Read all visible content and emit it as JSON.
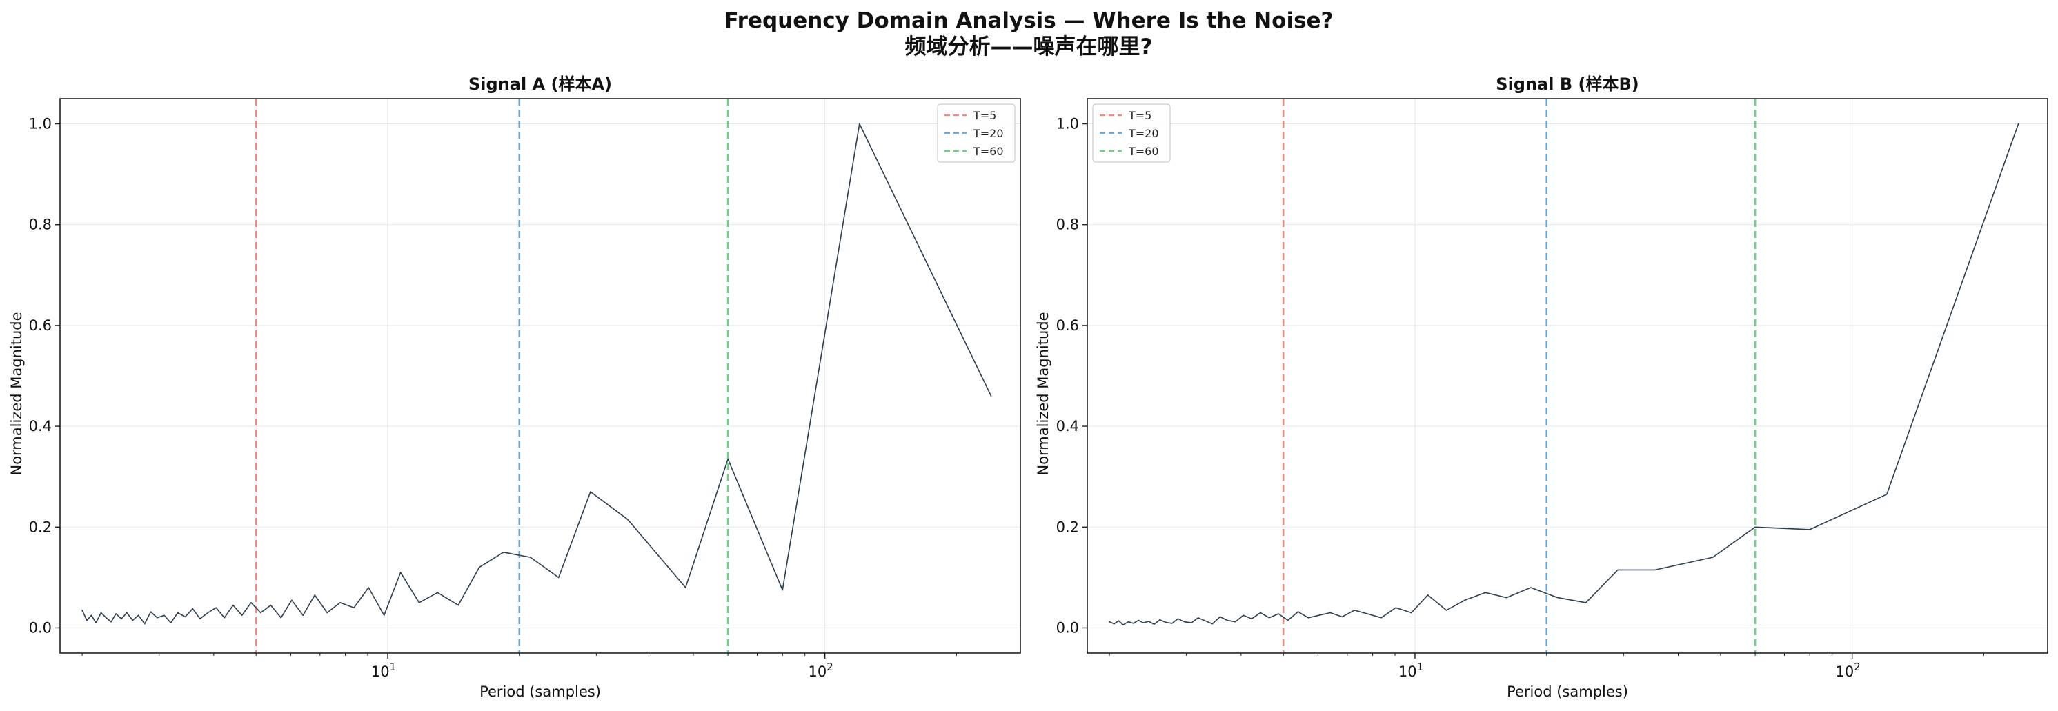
{
  "figure": {
    "title_line1": "Frequency Domain Analysis — Where Is the Noise?",
    "title_line2": "频域分析——噪声在哪里?"
  },
  "chart_data": [
    {
      "type": "line",
      "title": "Signal A (样本A)",
      "xlabel": "Period (samples)",
      "ylabel": "Normalized Magnitude",
      "xscale": "log",
      "xlim": [
        1.78,
        280
      ],
      "ylim": [
        -0.05,
        1.05
      ],
      "xticks": [
        {
          "value": 10,
          "base": "10",
          "exp": "1"
        },
        {
          "value": 100,
          "base": "10",
          "exp": "2"
        }
      ],
      "yticks": [
        "0.0",
        "0.2",
        "0.4",
        "0.6",
        "0.8",
        "1.0"
      ],
      "grid": true,
      "legend_position": "top-right",
      "vlines": [
        {
          "x": 5,
          "label": "T=5",
          "color": "#f08a80"
        },
        {
          "x": 20,
          "label": "T=20",
          "color": "#6aa9dc"
        },
        {
          "x": 60,
          "label": "T=60",
          "color": "#6fcf86"
        }
      ],
      "series": [
        {
          "color": "#2c3e50",
          "x": [
            2.0,
            2.05,
            2.1,
            2.15,
            2.21,
            2.27,
            2.33,
            2.39,
            2.46,
            2.53,
            2.61,
            2.69,
            2.78,
            2.87,
            2.97,
            3.08,
            3.19,
            3.31,
            3.44,
            3.58,
            3.72,
            3.88,
            4.05,
            4.23,
            4.43,
            4.64,
            4.87,
            5.12,
            5.4,
            5.7,
            6.03,
            6.4,
            6.81,
            7.27,
            7.78,
            8.37,
            9.04,
            9.81,
            10.7,
            11.8,
            13.0,
            14.5,
            16.2,
            18.4,
            21.2,
            24.6,
            29.1,
            35.4,
            48,
            60,
            80,
            120,
            240
          ],
          "y": [
            0.035,
            0.015,
            0.025,
            0.01,
            0.03,
            0.02,
            0.012,
            0.028,
            0.018,
            0.03,
            0.015,
            0.025,
            0.008,
            0.032,
            0.02,
            0.025,
            0.01,
            0.03,
            0.022,
            0.038,
            0.018,
            0.03,
            0.04,
            0.02,
            0.045,
            0.025,
            0.05,
            0.03,
            0.045,
            0.02,
            0.055,
            0.025,
            0.065,
            0.03,
            0.05,
            0.04,
            0.08,
            0.025,
            0.11,
            0.05,
            0.07,
            0.045,
            0.12,
            0.15,
            0.14,
            0.1,
            0.27,
            0.215,
            0.08,
            0.335,
            0.075,
            1.0,
            0.46
          ]
        }
      ]
    },
    {
      "type": "line",
      "title": "Signal B (样本B)",
      "xlabel": "Period (samples)",
      "ylabel": "Normalized Magnitude",
      "xscale": "log",
      "xlim": [
        1.78,
        280
      ],
      "ylim": [
        -0.05,
        1.05
      ],
      "xticks": [
        {
          "value": 10,
          "base": "10",
          "exp": "1"
        },
        {
          "value": 100,
          "base": "10",
          "exp": "2"
        }
      ],
      "yticks": [
        "0.0",
        "0.2",
        "0.4",
        "0.6",
        "0.8",
        "1.0"
      ],
      "grid": true,
      "legend_position": "top-left",
      "vlines": [
        {
          "x": 5,
          "label": "T=5",
          "color": "#f08a80"
        },
        {
          "x": 20,
          "label": "T=20",
          "color": "#6aa9dc"
        },
        {
          "x": 60,
          "label": "T=60",
          "color": "#6fcf86"
        }
      ],
      "series": [
        {
          "color": "#2c3e50",
          "x": [
            2.0,
            2.05,
            2.1,
            2.15,
            2.21,
            2.27,
            2.33,
            2.39,
            2.46,
            2.53,
            2.61,
            2.69,
            2.78,
            2.87,
            2.97,
            3.08,
            3.19,
            3.31,
            3.44,
            3.58,
            3.72,
            3.88,
            4.05,
            4.23,
            4.43,
            4.64,
            4.87,
            5.12,
            5.4,
            5.7,
            6.03,
            6.4,
            6.81,
            7.27,
            7.78,
            8.37,
            9.04,
            9.81,
            10.7,
            11.8,
            13.0,
            14.5,
            16.2,
            18.4,
            21.2,
            24.6,
            29.1,
            35.4,
            48,
            60,
            80,
            120,
            240
          ],
          "y": [
            0.012,
            0.008,
            0.014,
            0.006,
            0.012,
            0.009,
            0.015,
            0.01,
            0.013,
            0.007,
            0.016,
            0.011,
            0.009,
            0.018,
            0.012,
            0.01,
            0.02,
            0.014,
            0.008,
            0.022,
            0.015,
            0.012,
            0.025,
            0.018,
            0.03,
            0.02,
            0.028,
            0.015,
            0.032,
            0.02,
            0.025,
            0.03,
            0.022,
            0.035,
            0.028,
            0.02,
            0.04,
            0.03,
            0.065,
            0.035,
            0.055,
            0.07,
            0.06,
            0.08,
            0.06,
            0.05,
            0.115,
            0.115,
            0.14,
            0.2,
            0.195,
            0.265,
            1.0
          ]
        }
      ]
    }
  ]
}
